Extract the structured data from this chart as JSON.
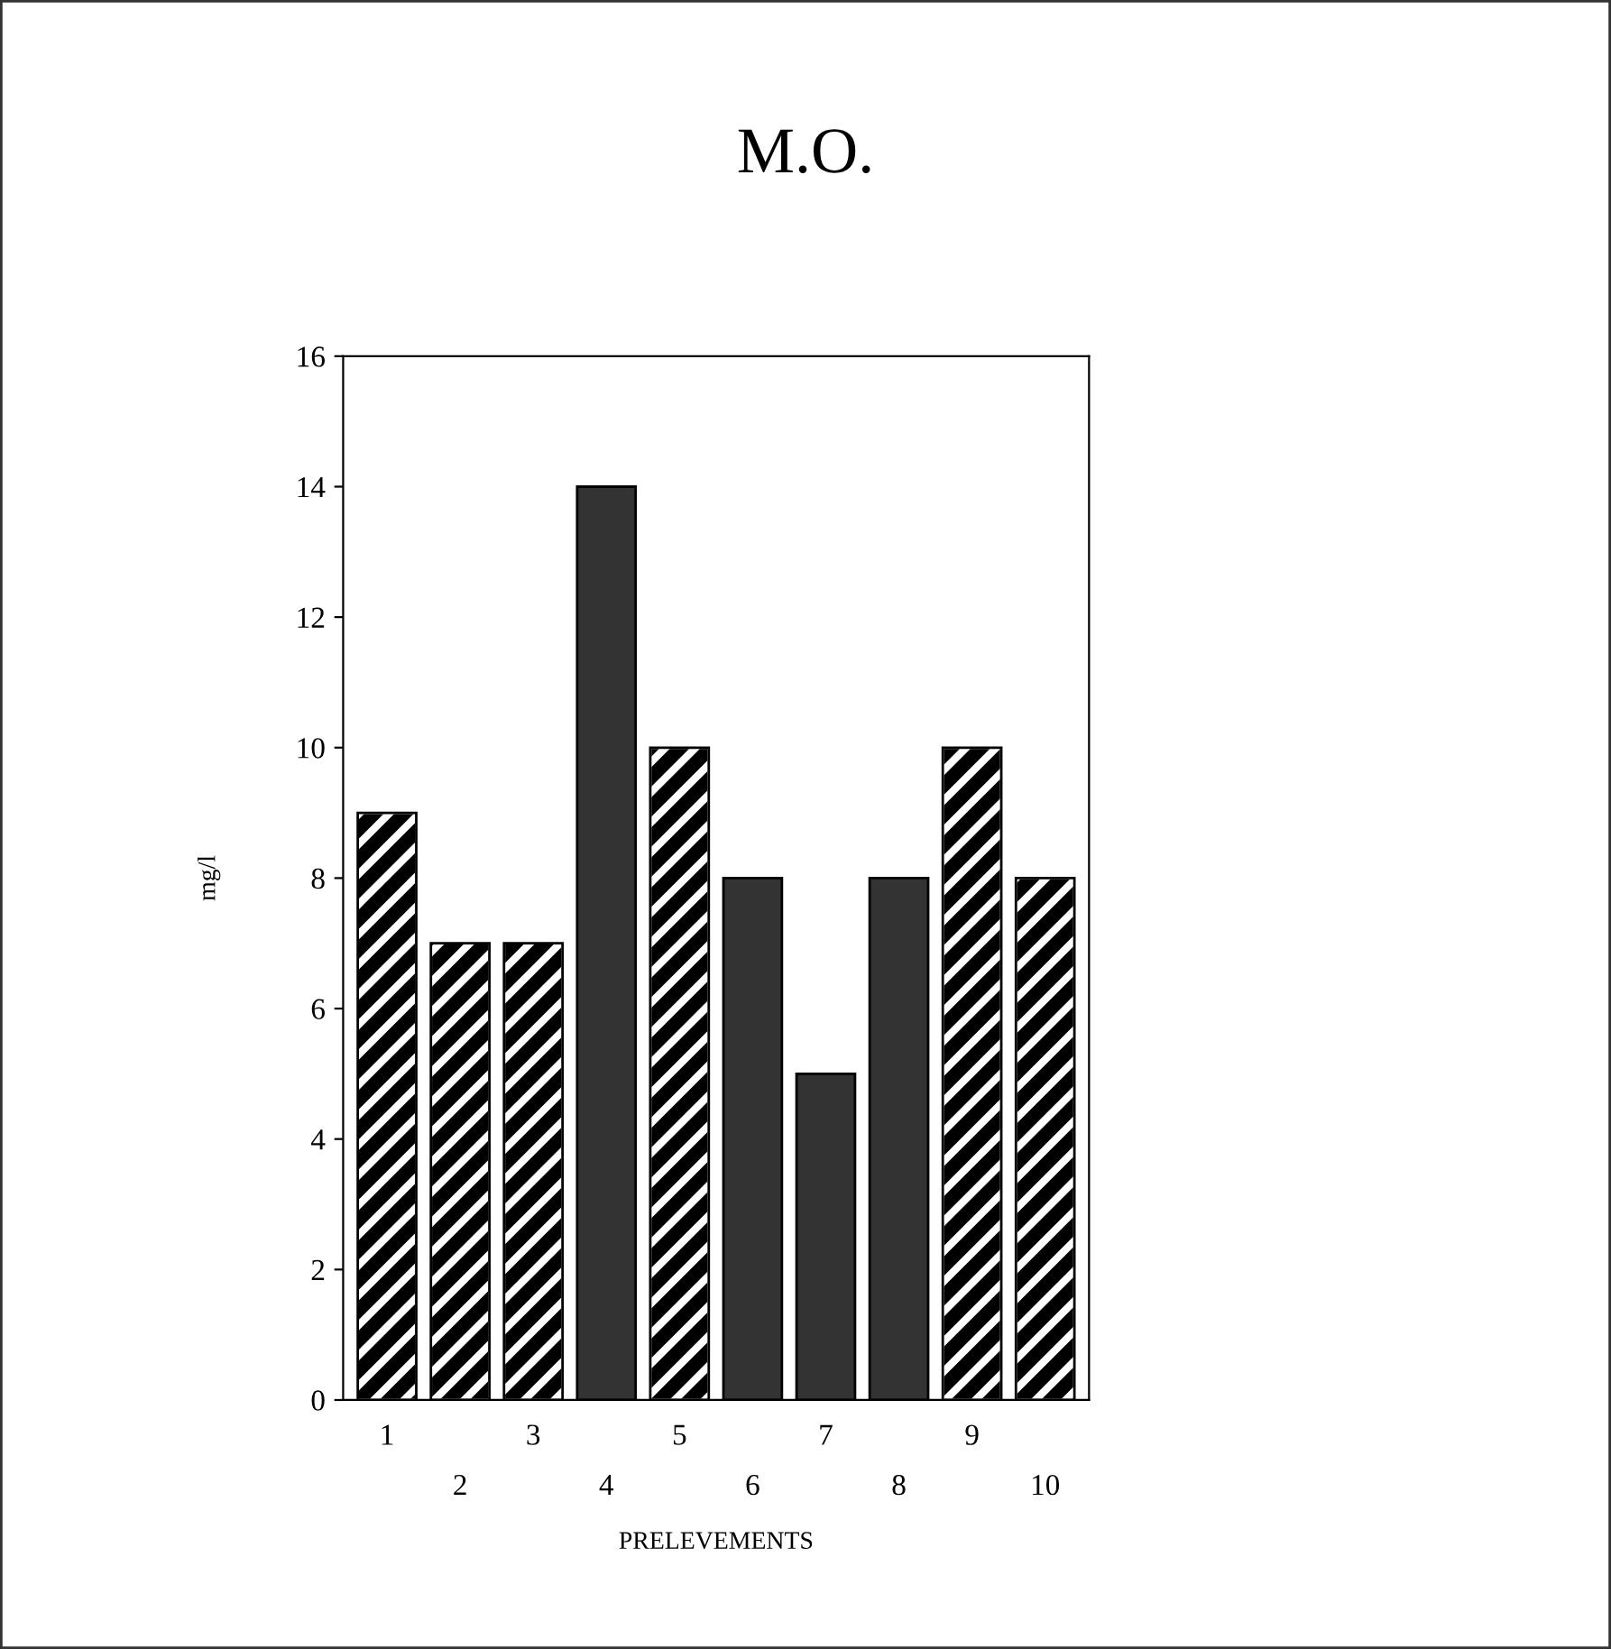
{
  "chart_data": {
    "type": "bar",
    "title": "M.O.",
    "xlabel": "PRELEVEMENTS",
    "ylabel": "mg/l",
    "categories": [
      "1",
      "2",
      "3",
      "4",
      "5",
      "6",
      "7",
      "8",
      "9",
      "10"
    ],
    "values": [
      9,
      7,
      7,
      14,
      10,
      8,
      5,
      8,
      10,
      8
    ],
    "colors": [
      "#000000",
      "#000000",
      "#000000",
      "#333333",
      "#000000",
      "#333333",
      "#333333",
      "#333333",
      "#000000",
      "#000000"
    ],
    "ylim": [
      0,
      16
    ],
    "yticks": [
      0,
      2,
      4,
      6,
      8,
      10,
      12,
      14,
      16
    ],
    "grid": false
  }
}
